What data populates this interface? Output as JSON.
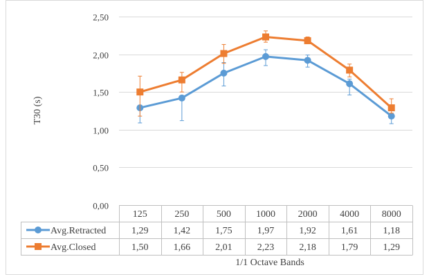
{
  "chart_data": {
    "type": "line",
    "ylabel": "T30 (s)",
    "xlabel": "1/1 Octave Bands",
    "categories": [
      "125",
      "250",
      "500",
      "1000",
      "2000",
      "4000",
      "8000"
    ],
    "ylim": [
      0,
      2.5
    ],
    "yticks": [
      "0,00",
      "0,50",
      "1,00",
      "1,50",
      "2,00",
      "2,50"
    ],
    "grid": true,
    "legend": "data-table",
    "series": [
      {
        "name": "Avg.Retracted",
        "color": "#5b9bd5",
        "values": [
          1.29,
          1.42,
          1.75,
          1.97,
          1.92,
          1.61,
          1.18
        ],
        "labels": [
          "1,29",
          "1,42",
          "1,75",
          "1,97",
          "1,92",
          "1,61",
          "1,18"
        ],
        "err_low": [
          1.09,
          1.12,
          1.58,
          1.85,
          1.83,
          1.46,
          1.08
        ],
        "err_high": [
          1.29,
          1.44,
          1.89,
          2.06,
          1.99,
          1.67,
          1.2
        ]
      },
      {
        "name": "Avg.Closed",
        "color": "#ed7d31",
        "values": [
          1.5,
          1.66,
          2.01,
          2.23,
          2.18,
          1.79,
          1.29
        ],
        "labels": [
          "1,50",
          "1,66",
          "2,01",
          "2,23",
          "2,18",
          "1,79",
          "1,29"
        ],
        "err_low": [
          1.18,
          1.5,
          1.88,
          2.16,
          2.14,
          1.7,
          1.22
        ],
        "err_high": [
          1.71,
          1.76,
          2.13,
          2.31,
          2.23,
          1.87,
          1.41
        ]
      }
    ]
  }
}
